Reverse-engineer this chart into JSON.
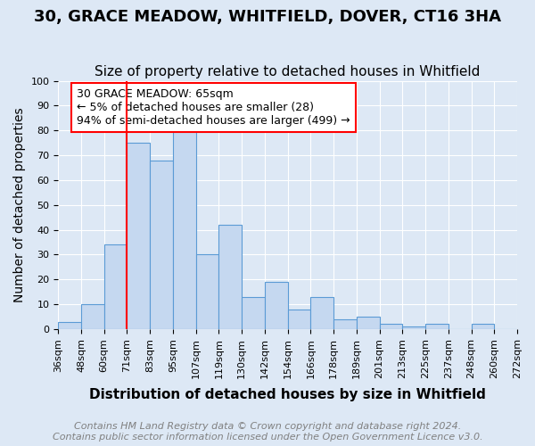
{
  "title": "30, GRACE MEADOW, WHITFIELD, DOVER, CT16 3HA",
  "subtitle": "Size of property relative to detached houses in Whitfield",
  "xlabel": "Distribution of detached houses by size in Whitfield",
  "ylabel": "Number of detached properties",
  "bins": [
    "36sqm",
    "48sqm",
    "60sqm",
    "71sqm",
    "83sqm",
    "95sqm",
    "107sqm",
    "119sqm",
    "130sqm",
    "142sqm",
    "154sqm",
    "166sqm",
    "178sqm",
    "189sqm",
    "201sqm",
    "213sqm",
    "225sqm",
    "237sqm",
    "248sqm",
    "260sqm",
    "272sqm"
  ],
  "counts": [
    3,
    10,
    34,
    75,
    68,
    81,
    30,
    42,
    13,
    19,
    8,
    13,
    4,
    5,
    2,
    1,
    2,
    0,
    2,
    0
  ],
  "bar_color": "#c5d8f0",
  "bar_edge_color": "#5b9bd5",
  "marker_bin_index": 2,
  "annotation_text": "30 GRACE MEADOW: 65sqm\n← 5% of detached houses are smaller (28)\n94% of semi-detached houses are larger (499) →",
  "annotation_box_color": "white",
  "annotation_box_edge_color": "red",
  "vline_color": "red",
  "footnote1": "Contains HM Land Registry data © Crown copyright and database right 2024.",
  "footnote2": "Contains public sector information licensed under the Open Government Licence v3.0.",
  "ylim": [
    0,
    100
  ],
  "title_fontsize": 13,
  "subtitle_fontsize": 11,
  "xlabel_fontsize": 11,
  "ylabel_fontsize": 10,
  "tick_fontsize": 8,
  "annotation_fontsize": 9,
  "footnote_fontsize": 8,
  "background_color": "#dde8f5"
}
